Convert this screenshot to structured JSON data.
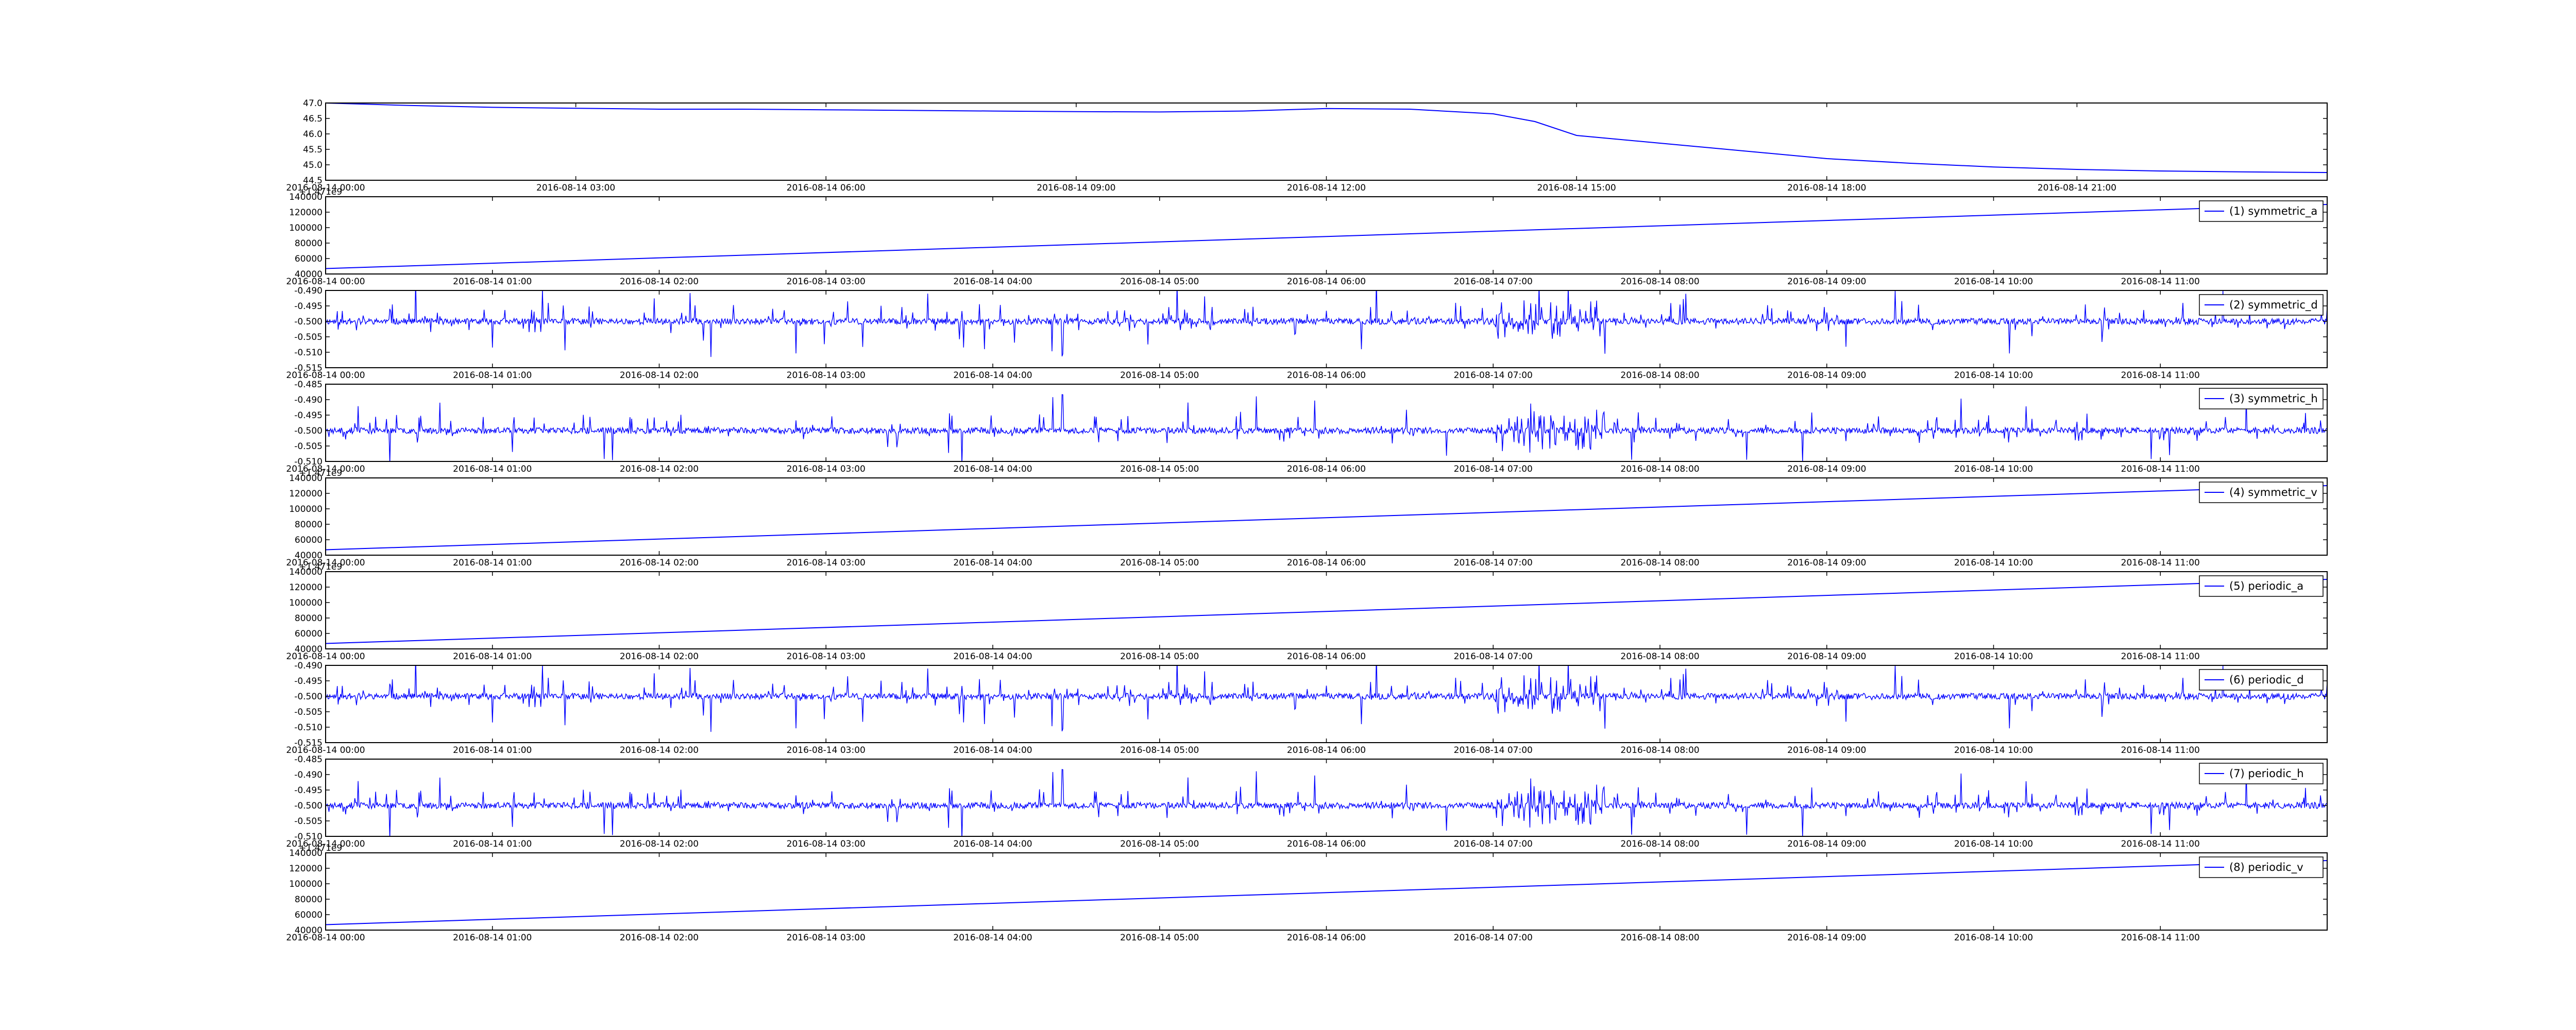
{
  "figure": {
    "background": "#ffffff",
    "line_color": "#0000ff"
  },
  "chart_data": [
    {
      "id": "p0",
      "type": "line",
      "x_type": "time",
      "xlim": [
        "2016-08-14 00:00",
        "2016-08-15 00:00"
      ],
      "xticks": [
        "2016-08-14 00:00",
        "2016-08-14 03:00",
        "2016-08-14 06:00",
        "2016-08-14 09:00",
        "2016-08-14 12:00",
        "2016-08-14 15:00",
        "2016-08-14 18:00",
        "2016-08-14 21:00"
      ],
      "ylim": [
        44.5,
        47.0
      ],
      "yticks": [
        "44.5",
        "45.0",
        "45.5",
        "46.0",
        "46.5",
        "47.0"
      ],
      "y_offset_label": "",
      "legend": "",
      "series": [
        {
          "signal": "trend",
          "points": [
            [
              "2016-08-14 00:00",
              47.0
            ],
            [
              "2016-08-14 01:00",
              46.92
            ],
            [
              "2016-08-14 02:00",
              46.86
            ],
            [
              "2016-08-14 03:00",
              46.83
            ],
            [
              "2016-08-14 04:00",
              46.8
            ],
            [
              "2016-08-14 05:00",
              46.8
            ],
            [
              "2016-08-14 06:00",
              46.78
            ],
            [
              "2016-08-14 07:00",
              46.76
            ],
            [
              "2016-08-14 08:00",
              46.74
            ],
            [
              "2016-08-14 09:00",
              46.72
            ],
            [
              "2016-08-14 10:00",
              46.71
            ],
            [
              "2016-08-14 11:00",
              46.74
            ],
            [
              "2016-08-14 12:00",
              46.82
            ],
            [
              "2016-08-14 13:00",
              46.8
            ],
            [
              "2016-08-14 14:00",
              46.65
            ],
            [
              "2016-08-14 14:30",
              46.4
            ],
            [
              "2016-08-14 15:00",
              45.95
            ],
            [
              "2016-08-14 16:00",
              45.7
            ],
            [
              "2016-08-14 17:00",
              45.45
            ],
            [
              "2016-08-14 18:00",
              45.2
            ],
            [
              "2016-08-14 19:00",
              45.05
            ],
            [
              "2016-08-14 20:00",
              44.93
            ],
            [
              "2016-08-14 21:00",
              44.85
            ],
            [
              "2016-08-14 22:00",
              44.8
            ],
            [
              "2016-08-14 23:00",
              44.77
            ],
            [
              "2016-08-15 00:00",
              44.75
            ]
          ]
        }
      ]
    },
    {
      "id": "p1",
      "type": "line",
      "x_type": "time",
      "xlim": [
        "2016-08-14 00:00",
        "2016-08-14 12:00"
      ],
      "xticks": [
        "2016-08-14 00:00",
        "2016-08-14 01:00",
        "2016-08-14 02:00",
        "2016-08-14 03:00",
        "2016-08-14 04:00",
        "2016-08-14 05:00",
        "2016-08-14 06:00",
        "2016-08-14 07:00",
        "2016-08-14 08:00",
        "2016-08-14 09:00",
        "2016-08-14 10:00",
        "2016-08-14 11:00"
      ],
      "ylim": [
        40000,
        140000
      ],
      "yticks": [
        "40000",
        "60000",
        "80000",
        "100000",
        "120000",
        "140000"
      ],
      "y_offset_label": "+1.471e9",
      "legend": "(1) symmetric_a",
      "series": [
        {
          "signal": "linear",
          "points": [
            [
              "2016-08-14 00:00",
              47000
            ],
            [
              "2016-08-14 12:00",
              130000
            ]
          ]
        }
      ]
    },
    {
      "id": "p2",
      "type": "line",
      "x_type": "time",
      "xlim": [
        "2016-08-14 00:00",
        "2016-08-14 12:00"
      ],
      "xticks": [
        "2016-08-14 00:00",
        "2016-08-14 01:00",
        "2016-08-14 02:00",
        "2016-08-14 03:00",
        "2016-08-14 04:00",
        "2016-08-14 05:00",
        "2016-08-14 06:00",
        "2016-08-14 07:00",
        "2016-08-14 08:00",
        "2016-08-14 09:00",
        "2016-08-14 10:00",
        "2016-08-14 11:00"
      ],
      "ylim": [
        -0.515,
        -0.49
      ],
      "yticks": [
        "-0.515",
        "-0.510",
        "-0.505",
        "-0.500",
        "-0.495",
        "-0.490"
      ],
      "y_offset_label": "",
      "legend": "(2) symmetric_d",
      "series": [
        {
          "signal": "noise",
          "baseline": -0.5,
          "amplitude": 0.004,
          "spike_max": 0.011,
          "peak_time": "2016-08-14 04:25",
          "burst_time": "2016-08-14 07:20",
          "seed": 11
        }
      ]
    },
    {
      "id": "p3",
      "type": "line",
      "x_type": "time",
      "xlim": [
        "2016-08-14 00:00",
        "2016-08-14 12:00"
      ],
      "xticks": [
        "2016-08-14 00:00",
        "2016-08-14 01:00",
        "2016-08-14 02:00",
        "2016-08-14 03:00",
        "2016-08-14 04:00",
        "2016-08-14 05:00",
        "2016-08-14 06:00",
        "2016-08-14 07:00",
        "2016-08-14 08:00",
        "2016-08-14 09:00",
        "2016-08-14 10:00",
        "2016-08-14 11:00"
      ],
      "ylim": [
        -0.51,
        -0.485
      ],
      "yticks": [
        "-0.510",
        "-0.505",
        "-0.500",
        "-0.495",
        "-0.490",
        "-0.485"
      ],
      "y_offset_label": "",
      "legend": "(3) symmetric_h",
      "series": [
        {
          "signal": "noise",
          "baseline": -0.5,
          "amplitude": 0.004,
          "spike_max": 0.011,
          "peak_time": "2016-08-14 04:25",
          "burst_time": "2016-08-14 07:20",
          "seed": 23
        }
      ]
    },
    {
      "id": "p4",
      "type": "line",
      "x_type": "time",
      "xlim": [
        "2016-08-14 00:00",
        "2016-08-14 12:00"
      ],
      "xticks": [
        "2016-08-14 00:00",
        "2016-08-14 01:00",
        "2016-08-14 02:00",
        "2016-08-14 03:00",
        "2016-08-14 04:00",
        "2016-08-14 05:00",
        "2016-08-14 06:00",
        "2016-08-14 07:00",
        "2016-08-14 08:00",
        "2016-08-14 09:00",
        "2016-08-14 10:00",
        "2016-08-14 11:00"
      ],
      "ylim": [
        40000,
        140000
      ],
      "yticks": [
        "40000",
        "60000",
        "80000",
        "100000",
        "120000",
        "140000"
      ],
      "y_offset_label": "+1.471e9",
      "legend": "(4) symmetric_v",
      "series": [
        {
          "signal": "linear",
          "points": [
            [
              "2016-08-14 00:00",
              47000
            ],
            [
              "2016-08-14 12:00",
              130000
            ]
          ]
        }
      ]
    },
    {
      "id": "p5",
      "type": "line",
      "x_type": "time",
      "xlim": [
        "2016-08-14 00:00",
        "2016-08-14 12:00"
      ],
      "xticks": [
        "2016-08-14 00:00",
        "2016-08-14 01:00",
        "2016-08-14 02:00",
        "2016-08-14 03:00",
        "2016-08-14 04:00",
        "2016-08-14 05:00",
        "2016-08-14 06:00",
        "2016-08-14 07:00",
        "2016-08-14 08:00",
        "2016-08-14 09:00",
        "2016-08-14 10:00",
        "2016-08-14 11:00"
      ],
      "ylim": [
        40000,
        140000
      ],
      "yticks": [
        "40000",
        "60000",
        "80000",
        "100000",
        "120000",
        "140000"
      ],
      "y_offset_label": "+1.471e9",
      "legend": "(5) periodic_a",
      "series": [
        {
          "signal": "linear",
          "points": [
            [
              "2016-08-14 00:00",
              47000
            ],
            [
              "2016-08-14 12:00",
              130000
            ]
          ]
        }
      ]
    },
    {
      "id": "p6",
      "type": "line",
      "x_type": "time",
      "xlim": [
        "2016-08-14 00:00",
        "2016-08-14 12:00"
      ],
      "xticks": [
        "2016-08-14 00:00",
        "2016-08-14 01:00",
        "2016-08-14 02:00",
        "2016-08-14 03:00",
        "2016-08-14 04:00",
        "2016-08-14 05:00",
        "2016-08-14 06:00",
        "2016-08-14 07:00",
        "2016-08-14 08:00",
        "2016-08-14 09:00",
        "2016-08-14 10:00",
        "2016-08-14 11:00"
      ],
      "ylim": [
        -0.515,
        -0.49
      ],
      "yticks": [
        "-0.515",
        "-0.510",
        "-0.505",
        "-0.500",
        "-0.495",
        "-0.490"
      ],
      "y_offset_label": "",
      "legend": "(6) periodic_d",
      "series": [
        {
          "signal": "noise",
          "baseline": -0.5,
          "amplitude": 0.004,
          "spike_max": 0.011,
          "peak_time": "2016-08-14 04:25",
          "burst_time": "2016-08-14 07:20",
          "seed": 11
        }
      ]
    },
    {
      "id": "p7",
      "type": "line",
      "x_type": "time",
      "xlim": [
        "2016-08-14 00:00",
        "2016-08-14 12:00"
      ],
      "xticks": [
        "2016-08-14 00:00",
        "2016-08-14 01:00",
        "2016-08-14 02:00",
        "2016-08-14 03:00",
        "2016-08-14 04:00",
        "2016-08-14 05:00",
        "2016-08-14 06:00",
        "2016-08-14 07:00",
        "2016-08-14 08:00",
        "2016-08-14 09:00",
        "2016-08-14 10:00",
        "2016-08-14 11:00"
      ],
      "ylim": [
        -0.51,
        -0.485
      ],
      "yticks": [
        "-0.510",
        "-0.505",
        "-0.500",
        "-0.495",
        "-0.490",
        "-0.485"
      ],
      "y_offset_label": "",
      "legend": "(7) periodic_h",
      "series": [
        {
          "signal": "noise",
          "baseline": -0.5,
          "amplitude": 0.004,
          "spike_max": 0.011,
          "peak_time": "2016-08-14 04:25",
          "burst_time": "2016-08-14 07:20",
          "seed": 23
        }
      ]
    },
    {
      "id": "p8",
      "type": "line",
      "x_type": "time",
      "xlim": [
        "2016-08-14 00:00",
        "2016-08-14 12:00"
      ],
      "xticks": [
        "2016-08-14 00:00",
        "2016-08-14 01:00",
        "2016-08-14 02:00",
        "2016-08-14 03:00",
        "2016-08-14 04:00",
        "2016-08-14 05:00",
        "2016-08-14 06:00",
        "2016-08-14 07:00",
        "2016-08-14 08:00",
        "2016-08-14 09:00",
        "2016-08-14 10:00",
        "2016-08-14 11:00"
      ],
      "ylim": [
        40000,
        140000
      ],
      "yticks": [
        "40000",
        "60000",
        "80000",
        "100000",
        "120000",
        "140000"
      ],
      "y_offset_label": "+1.471e9",
      "legend": "(8) periodic_v",
      "series": [
        {
          "signal": "linear",
          "points": [
            [
              "2016-08-14 00:00",
              47000
            ],
            [
              "2016-08-14 12:00",
              130000
            ]
          ]
        }
      ]
    }
  ]
}
